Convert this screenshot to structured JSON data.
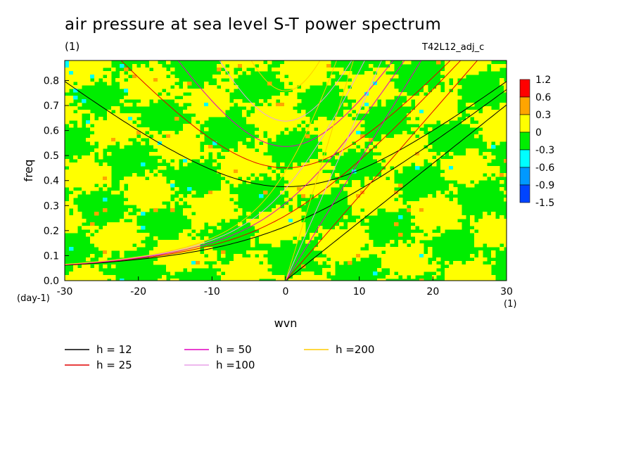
{
  "header": {
    "title": "air pressure at sea level S-T power spectrum",
    "units": "(1)",
    "experiment": "T42L12_adj_c"
  },
  "chart_data": {
    "type": "heatmap",
    "title": "air pressure at sea level S-T power spectrum",
    "xlabel": "wvn",
    "ylabel": "freq",
    "x_unit": "(1)",
    "y_unit": "(day-1)",
    "xlim": [
      -30,
      30
    ],
    "ylim": [
      0,
      0.88
    ],
    "xticks": [
      -30,
      -20,
      -10,
      0,
      10,
      20,
      30
    ],
    "yticks": [
      0.0,
      0.1,
      0.2,
      0.3,
      0.4,
      0.5,
      0.6,
      0.7,
      0.8
    ],
    "xtick_labels": [
      "-30",
      "-20",
      "-10",
      "0",
      "10",
      "20",
      "30"
    ],
    "ytick_labels": [
      "0.0",
      "0.1",
      "0.2",
      "0.3",
      "0.4",
      "0.5",
      "0.6",
      "0.7",
      "0.8"
    ],
    "colorbar": {
      "levels": [
        "1.2",
        "0.6",
        "0.3",
        "0",
        "-0.3",
        "-0.6",
        "-0.9",
        "-1.5"
      ],
      "colors": [
        "#ff0000",
        "#ffa500",
        "#ffff00",
        "#00ee00",
        "#00ffff",
        "#0099ff",
        "#0044ff"
      ]
    },
    "dispersion_curves": [
      {
        "label": "h = 12",
        "h": 12,
        "color": "#000000"
      },
      {
        "label": "h = 25",
        "h": 25,
        "color": "#e00000"
      },
      {
        "label": "h = 50",
        "h": 50,
        "color": "#e000c0"
      },
      {
        "label": "h =100",
        "h": 100,
        "color": "#e8a0e8"
      },
      {
        "label": "h =200",
        "h": 200,
        "color": "#ffcc00"
      }
    ],
    "legend_position": "below"
  }
}
